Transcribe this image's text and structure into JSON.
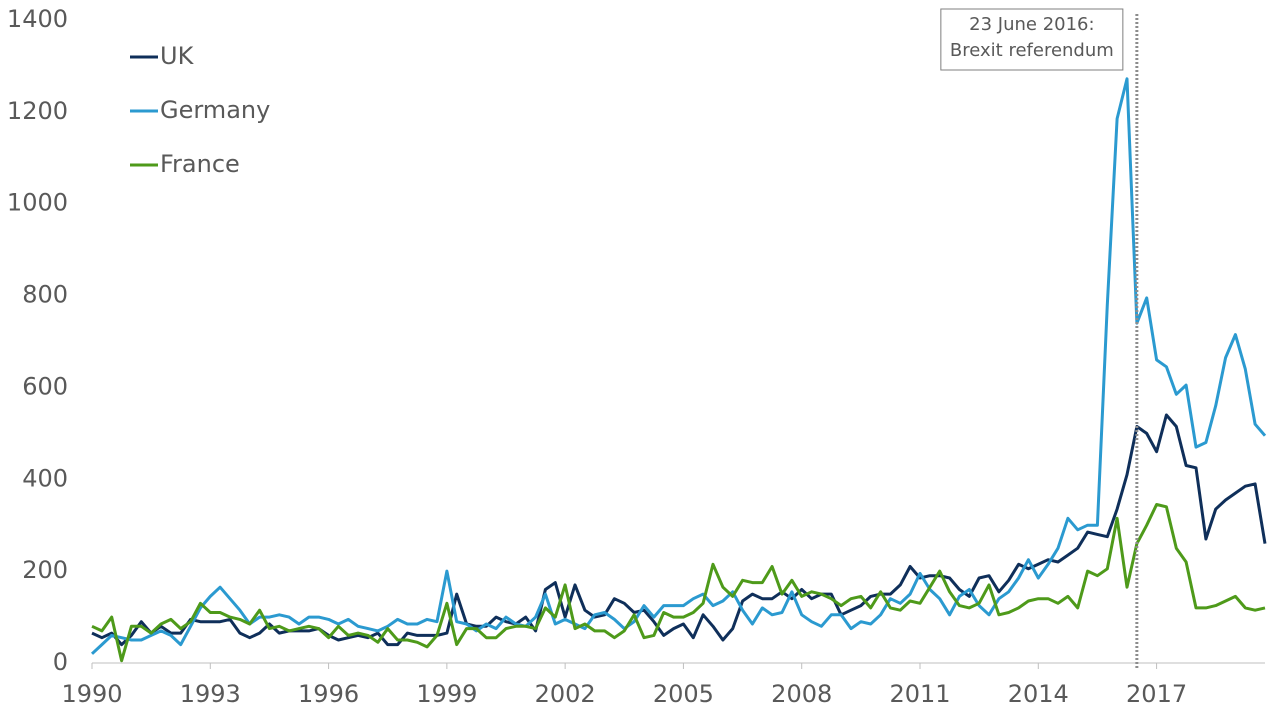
{
  "chart_data": {
    "type": "line",
    "x": [
      1990,
      1990.25,
      1990.5,
      1990.75,
      1991,
      1991.25,
      1991.5,
      1991.75,
      1992,
      1992.25,
      1992.5,
      1992.75,
      1993,
      1993.25,
      1993.5,
      1993.75,
      1994,
      1994.25,
      1994.5,
      1994.75,
      1995,
      1995.25,
      1995.5,
      1995.75,
      1996,
      1996.25,
      1996.5,
      1996.75,
      1997,
      1997.25,
      1997.5,
      1997.75,
      1998,
      1998.25,
      1998.5,
      1998.75,
      1999,
      1999.25,
      1999.5,
      1999.75,
      2000,
      2000.25,
      2000.5,
      2000.75,
      2001,
      2001.25,
      2001.5,
      2001.75,
      2002,
      2002.25,
      2002.5,
      2002.75,
      2003,
      2003.25,
      2003.5,
      2003.75,
      2004,
      2004.25,
      2004.5,
      2004.75,
      2005,
      2005.25,
      2005.5,
      2005.75,
      2006,
      2006.25,
      2006.5,
      2006.75,
      2007,
      2007.25,
      2007.5,
      2007.75,
      2008,
      2008.25,
      2008.5,
      2008.75,
      2009,
      2009.25,
      2009.5,
      2009.75,
      2010,
      2010.25,
      2010.5,
      2010.75,
      2011,
      2011.25,
      2011.5,
      2011.75,
      2012,
      2012.25,
      2012.5,
      2012.75,
      2013,
      2013.25,
      2013.5,
      2013.75,
      2014,
      2014.25,
      2014.5,
      2014.75,
      2015,
      2015.25,
      2015.5,
      2015.75,
      2016,
      2016.25,
      2016.5,
      2016.75,
      2017,
      2017.25,
      2017.5,
      2017.75,
      2018,
      2018.25,
      2018.5,
      2018.75,
      2019,
      2019.25,
      2019.5,
      2019.75
    ],
    "series": [
      {
        "name": "UK",
        "color": "#0f2f5a",
        "values": [
          65,
          55,
          65,
          40,
          60,
          90,
          65,
          80,
          65,
          65,
          95,
          90,
          90,
          90,
          95,
          65,
          55,
          65,
          85,
          65,
          70,
          70,
          70,
          75,
          60,
          50,
          55,
          60,
          55,
          65,
          40,
          40,
          65,
          60,
          60,
          60,
          65,
          150,
          85,
          80,
          80,
          100,
          90,
          85,
          100,
          70,
          160,
          175,
          100,
          170,
          115,
          100,
          105,
          140,
          130,
          110,
          115,
          90,
          60,
          75,
          85,
          55,
          105,
          80,
          50,
          75,
          135,
          150,
          140,
          140,
          155,
          140,
          160,
          140,
          150,
          150,
          105,
          115,
          125,
          145,
          150,
          150,
          170,
          210,
          185,
          190,
          190,
          185,
          160,
          145,
          185,
          190,
          155,
          180,
          215,
          205,
          215,
          225,
          220,
          235,
          250,
          285,
          280,
          275,
          335,
          410,
          515,
          500,
          460,
          540,
          515,
          430,
          425,
          270,
          335,
          355,
          370,
          385,
          390,
          260
        ]
      },
      {
        "name": "Germany",
        "color": "#2b9ad0",
        "values": [
          20,
          40,
          60,
          55,
          50,
          50,
          60,
          70,
          60,
          40,
          80,
          120,
          145,
          165,
          140,
          115,
          85,
          100,
          100,
          105,
          100,
          85,
          100,
          100,
          95,
          85,
          95,
          80,
          75,
          70,
          80,
          95,
          85,
          85,
          95,
          90,
          200,
          90,
          85,
          70,
          85,
          75,
          100,
          85,
          80,
          100,
          150,
          85,
          95,
          85,
          75,
          105,
          110,
          95,
          75,
          90,
          125,
          100,
          125,
          125,
          125,
          140,
          150,
          125,
          135,
          155,
          115,
          85,
          120,
          105,
          110,
          155,
          105,
          90,
          80,
          105,
          105,
          75,
          90,
          85,
          105,
          140,
          130,
          150,
          195,
          160,
          140,
          105,
          145,
          160,
          125,
          105,
          140,
          155,
          185,
          225,
          185,
          215,
          250,
          315,
          290,
          300,
          300,
          780,
          1185,
          1272,
          740,
          795,
          660,
          645,
          585,
          605,
          470,
          480,
          560,
          665,
          715,
          640,
          520,
          495
        ]
      },
      {
        "name": "France",
        "color": "#4e9a1a",
        "values": [
          80,
          70,
          100,
          5,
          80,
          80,
          65,
          85,
          95,
          75,
          90,
          130,
          110,
          110,
          100,
          95,
          85,
          115,
          75,
          80,
          70,
          75,
          80,
          75,
          55,
          80,
          60,
          65,
          60,
          45,
          75,
          50,
          50,
          45,
          35,
          60,
          130,
          40,
          75,
          75,
          55,
          55,
          75,
          80,
          80,
          75,
          120,
          100,
          170,
          75,
          85,
          70,
          70,
          55,
          70,
          105,
          55,
          60,
          110,
          100,
          100,
          110,
          130,
          215,
          165,
          145,
          180,
          175,
          175,
          210,
          150,
          180,
          145,
          155,
          150,
          140,
          125,
          140,
          145,
          120,
          155,
          120,
          115,
          135,
          130,
          165,
          200,
          155,
          125,
          120,
          130,
          170,
          105,
          110,
          120,
          135,
          140,
          140,
          130,
          145,
          120,
          200,
          190,
          205,
          315,
          165,
          260,
          300,
          345,
          340,
          250,
          220,
          120,
          120,
          125,
          135,
          145,
          120,
          115,
          120
        ]
      }
    ],
    "xlim": [
      1990,
      2019.75
    ],
    "xticks": [
      1990,
      1993,
      1996,
      1999,
      2002,
      2005,
      2008,
      2011,
      2014,
      2017
    ],
    "ylim": [
      0,
      1400
    ],
    "yticks": [
      0,
      200,
      400,
      600,
      800,
      1000,
      1200,
      1400
    ],
    "grid": false,
    "legend": "top-left",
    "annotation": {
      "x": 2016.5,
      "lines": [
        "23 June 2016:",
        "Brexit referendum"
      ]
    }
  }
}
